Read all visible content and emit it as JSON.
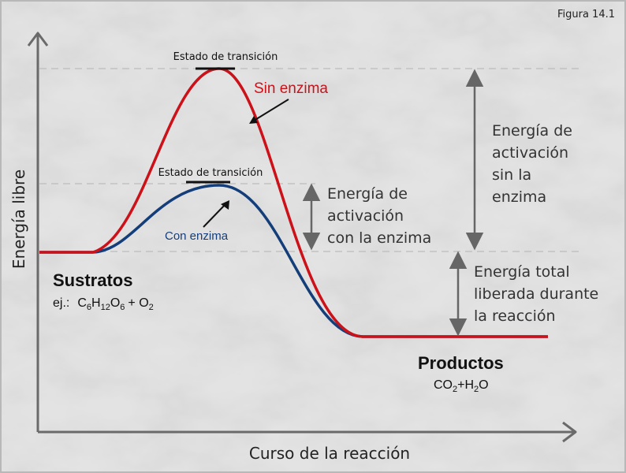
{
  "figure_label": "Figura 14.1",
  "axes": {
    "y_label": "Energía libre",
    "x_label": "Curso de la reacción"
  },
  "transition_state_top": "Estado de transición",
  "transition_state_bottom": "Estado de transición",
  "curve_labels": {
    "without_enzyme": "Sin enzima",
    "with_enzyme": "Con enzima"
  },
  "substrates": {
    "title": "Sustratos",
    "example_prefix": "ej.:",
    "formula": {
      "c": "C",
      "c_sub": "6",
      "h": "H",
      "h_sub": "12",
      "o": "O",
      "o_sub": "6",
      "plus": "+ O",
      "o2_sub": "2"
    }
  },
  "products": {
    "title": "Productos",
    "formula": {
      "co": "CO",
      "co_sub": "2",
      "plus_h": "+H",
      "h_sub": "2",
      "o": "O"
    }
  },
  "activation_with_enzyme": [
    "Energía de",
    "activación",
    "con la enzima"
  ],
  "activation_without_enzyme": [
    "Energía de",
    "activación",
    "sin la",
    "enzima"
  ],
  "total_energy": [
    "Energía total",
    "liberada durante",
    "la reacción"
  ],
  "colors": {
    "without_enzyme": "#cc1119",
    "with_enzyme": "#143e7a",
    "arrows": "#666666",
    "background": "#e3e3e3"
  }
}
